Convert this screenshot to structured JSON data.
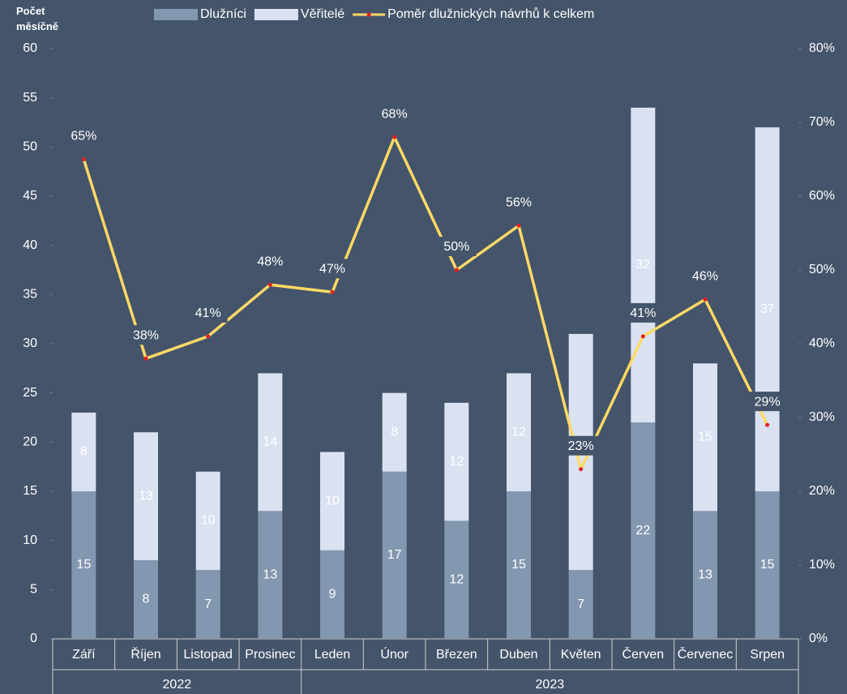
{
  "chart_data": {
    "type": "bar",
    "y_label": "Počet měsíčně",
    "categories": [
      "Září",
      "Říjen",
      "Listopad",
      "Prosinec",
      "Leden",
      "Únor",
      "Březen",
      "Duben",
      "Květen",
      "Červen",
      "Červenec",
      "Srpen"
    ],
    "groups": [
      {
        "label": "2022",
        "size": 4
      },
      {
        "label": "2023",
        "size": 8
      }
    ],
    "stacked": true,
    "series": [
      {
        "name": "Dlužníci",
        "color": "#8497b0",
        "values": [
          15,
          8,
          7,
          13,
          9,
          17,
          12,
          15,
          7,
          22,
          13,
          15
        ]
      },
      {
        "name": "Věřitelé",
        "color": "#dae2f2",
        "values": [
          8,
          13,
          10,
          14,
          10,
          8,
          12,
          12,
          24,
          32,
          15,
          37
        ]
      },
      {
        "name": "Poměr dlužnických návrhů k celkem",
        "type": "line",
        "axis": "y2",
        "color": "#ffd966",
        "marker_color": "#e02020",
        "values": [
          65,
          38,
          41,
          48,
          47,
          68,
          50,
          56,
          23,
          41,
          46,
          29
        ],
        "value_labels": [
          "65%",
          "38%",
          "41%",
          "48%",
          "47%",
          "68%",
          "50%",
          "56%",
          "23%",
          "41%",
          "46%",
          "29%"
        ]
      }
    ],
    "ylim": [
      0,
      60
    ],
    "yticks": [
      0,
      5,
      10,
      15,
      20,
      25,
      30,
      35,
      40,
      45,
      50,
      55,
      60
    ],
    "y2lim": [
      0,
      80
    ],
    "y2ticks": [
      {
        "value": 0,
        "label": "0%"
      },
      {
        "value": 10,
        "label": "10%"
      },
      {
        "value": 20,
        "label": "20%"
      },
      {
        "value": 30,
        "label": "30%"
      },
      {
        "value": 40,
        "label": "40%"
      },
      {
        "value": 50,
        "label": "50%"
      },
      {
        "value": 60,
        "label": "60%"
      },
      {
        "value": 70,
        "label": "70%"
      },
      {
        "value": 80,
        "label": "80%"
      }
    ],
    "legend": "top"
  }
}
